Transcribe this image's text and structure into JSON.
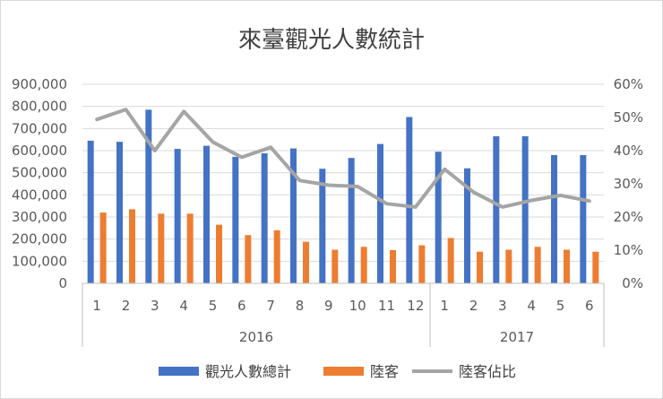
{
  "chart_data": {
    "type": "bar",
    "title": "來臺觀光人數統計",
    "categories": [
      "1",
      "2",
      "3",
      "4",
      "5",
      "6",
      "7",
      "8",
      "9",
      "10",
      "11",
      "12",
      "1",
      "2",
      "3",
      "4",
      "5",
      "6"
    ],
    "groups": [
      {
        "label": "2016",
        "count": 12
      },
      {
        "label": "2017",
        "count": 6
      }
    ],
    "series": [
      {
        "name": "觀光人數總計",
        "kind": "bar",
        "axis": "left",
        "color": "#4472c4",
        "values": [
          645000,
          640000,
          785000,
          608000,
          622000,
          572000,
          588000,
          610000,
          518000,
          567000,
          630000,
          752000,
          595000,
          520000,
          665000,
          665000,
          580000,
          580000
        ]
      },
      {
        "name": "陸客",
        "kind": "bar",
        "axis": "left",
        "color": "#ed7d31",
        "values": [
          320000,
          335000,
          315000,
          315000,
          265000,
          218000,
          240000,
          188000,
          152000,
          165000,
          150000,
          172000,
          205000,
          143000,
          152000,
          165000,
          152000,
          143000
        ]
      },
      {
        "name": "陸客佔比",
        "kind": "line",
        "axis": "right",
        "color": "#a5a5a5",
        "values": [
          0.494,
          0.524,
          0.4,
          0.518,
          0.426,
          0.38,
          0.41,
          0.31,
          0.296,
          0.292,
          0.24,
          0.23,
          0.344,
          0.275,
          0.23,
          0.25,
          0.265,
          0.248
        ]
      }
    ],
    "y_left": {
      "min": 0,
      "max": 900000,
      "step": 100000,
      "tick_labels": [
        "0",
        "100,000",
        "200,000",
        "300,000",
        "400,000",
        "500,000",
        "600,000",
        "700,000",
        "800,000",
        "900,000"
      ]
    },
    "y_right": {
      "min": 0,
      "max": 0.6,
      "step": 0.1,
      "tick_labels": [
        "0%",
        "10%",
        "20%",
        "30%",
        "40%",
        "50%",
        "60%"
      ]
    },
    "grid": true,
    "legend_position": "bottom"
  }
}
